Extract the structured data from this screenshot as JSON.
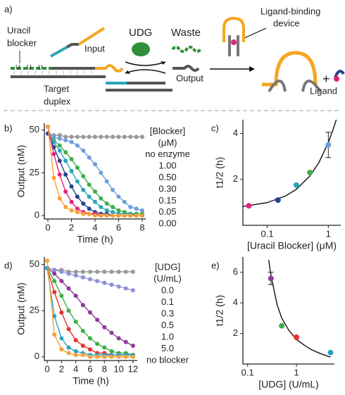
{
  "diagram": {
    "label": "a)",
    "uracil": "Uracil",
    "blocker": "blocker",
    "input": "Input",
    "udg": "UDG",
    "waste": "Waste",
    "output": "Output",
    "target": "Target",
    "duplex": "duplex",
    "device1": "Ligand-binding",
    "device2": "device",
    "plus": "+",
    "ligand": "Ligand",
    "u": "U"
  },
  "chart_data": [
    {
      "type": "line",
      "panel_label": "b)",
      "xlabel": "Time (h)",
      "ylabel": "Output (nM)",
      "xlim": [
        -0.3,
        8.3
      ],
      "ylim": [
        -2,
        54
      ],
      "xticks": [
        0,
        2,
        4,
        6,
        8
      ],
      "yticks": [
        0,
        25,
        50
      ],
      "legend": "right",
      "legend_title": [
        "[Blocker]",
        "(μM)"
      ],
      "x": [
        0,
        0.5,
        1,
        1.5,
        2,
        2.5,
        3,
        3.5,
        4,
        4.5,
        5,
        5.5,
        6,
        6.5,
        7,
        7.5,
        8
      ],
      "series": [
        {
          "name": "no enzyme",
          "color": "#999999",
          "values": [
            48,
            47,
            47,
            46,
            46,
            46,
            46,
            46,
            46,
            46,
            46,
            46,
            46,
            46,
            46,
            46,
            46
          ]
        },
        {
          "name": "1.00",
          "color": "#6e9fdc",
          "values": [
            48,
            46,
            45,
            44,
            43,
            41,
            38,
            34,
            30,
            25,
            20,
            15,
            11,
            8,
            5,
            4,
            3
          ]
        },
        {
          "name": "0.50",
          "color": "#3fae49",
          "values": [
            48,
            44,
            41,
            37,
            33,
            28,
            23,
            18,
            14,
            10,
            7,
            5,
            3,
            2,
            1,
            1,
            1
          ]
        },
        {
          "name": "0.30",
          "color": "#2aa6b8",
          "values": [
            48,
            43,
            38,
            32,
            26,
            20,
            15,
            11,
            8,
            5,
            3,
            2,
            1,
            1,
            1,
            0,
            0
          ]
        },
        {
          "name": "0.15",
          "color": "#27408b",
          "values": [
            48,
            40,
            32,
            24,
            17,
            11,
            7,
            4,
            2,
            1,
            1,
            0,
            0,
            0,
            0,
            0,
            0
          ]
        },
        {
          "name": "0.05",
          "color": "#e0247a",
          "values": [
            52,
            36,
            24,
            14,
            8,
            4,
            2,
            1,
            1,
            0,
            0,
            0,
            0,
            0,
            0,
            0,
            0
          ]
        },
        {
          "name": "0.00",
          "color": "#f7a134",
          "values": [
            52,
            22,
            10,
            5,
            3,
            2,
            1,
            1,
            0,
            0,
            0,
            0,
            0,
            0,
            0,
            0,
            0
          ]
        }
      ]
    },
    {
      "type": "scatter",
      "panel_label": "c)",
      "xlabel": "[Uracil Blocker] (μM)",
      "ylabel": "t1/2 (h)",
      "xscale": "log",
      "xlim": [
        0.04,
        1.6
      ],
      "ylim": [
        0,
        4.6
      ],
      "xticks": [
        0.1,
        1
      ],
      "yticks": [
        2,
        4
      ],
      "x": [
        0.05,
        0.15,
        0.3,
        0.5,
        1.0
      ],
      "values": [
        0.85,
        1.1,
        1.75,
        2.3,
        3.5
      ],
      "errors": [
        null,
        null,
        null,
        null,
        0.55
      ],
      "colors": [
        "#e0247a",
        "#27408b",
        "#2aa6b8",
        "#3fae49",
        "#6e9fdc"
      ],
      "fit": {
        "color": "#111111",
        "x": [
          0.04,
          0.1,
          0.2,
          0.3,
          0.5,
          0.7,
          1.0,
          1.2,
          1.35
        ],
        "values": [
          0.82,
          0.99,
          1.28,
          1.57,
          2.15,
          2.73,
          3.6,
          4.18,
          4.6
        ]
      }
    },
    {
      "type": "line",
      "panel_label": "d)",
      "xlabel": "Time (h)",
      "ylabel": "Output (nM)",
      "xlim": [
        -0.4,
        12.6
      ],
      "ylim": [
        -2,
        54
      ],
      "xticks": [
        0,
        2,
        4,
        6,
        8,
        10,
        12
      ],
      "yticks": [
        0,
        25,
        50
      ],
      "legend": "right",
      "legend_title": [
        "[UDG]",
        "(U/mL)"
      ],
      "x": [
        0,
        1,
        2,
        3,
        4,
        5,
        6,
        7,
        8,
        9,
        10,
        11,
        12
      ],
      "series": [
        {
          "name": "0.0",
          "color": "#999999",
          "values": [
            48,
            47,
            47,
            46,
            46,
            46,
            46,
            46,
            46,
            46,
            46,
            46,
            46
          ]
        },
        {
          "name": "0.1",
          "color": "#8f8fd6",
          "values": [
            48,
            47,
            46,
            45,
            44,
            43,
            42,
            41,
            40,
            39,
            38,
            37,
            36
          ]
        },
        {
          "name": "0.3",
          "color": "#8e3a9a",
          "values": [
            48,
            45,
            41,
            37,
            33,
            28,
            24,
            20,
            16,
            13,
            10,
            8,
            6
          ]
        },
        {
          "name": "0.5",
          "color": "#3fae49",
          "values": [
            48,
            41,
            33,
            25,
            19,
            14,
            10,
            7,
            5,
            3,
            2,
            2,
            1
          ]
        },
        {
          "name": "1.0",
          "color": "#e8322b",
          "values": [
            48,
            35,
            24,
            15,
            9,
            6,
            4,
            2,
            2,
            1,
            1,
            1,
            1
          ]
        },
        {
          "name": "5.0",
          "color": "#2aa0c4",
          "values": [
            48,
            22,
            10,
            5,
            3,
            2,
            1,
            1,
            1,
            1,
            1,
            1,
            1
          ]
        },
        {
          "name": "no blocker",
          "color": "#f7a134",
          "values": [
            52,
            12,
            4,
            2,
            1,
            1,
            0,
            0,
            0,
            0,
            0,
            0,
            0
          ]
        }
      ]
    },
    {
      "type": "scatter",
      "panel_label": "e)",
      "xlabel": "[UDG] (U/mL)",
      "ylabel": "t1/2 (h)",
      "xscale": "log",
      "xlim": [
        0.08,
        6
      ],
      "ylim": [
        0,
        7
      ],
      "xticks": [
        0.1,
        1
      ],
      "yticks": [
        2,
        4,
        6
      ],
      "x": [
        0.3,
        0.5,
        1.0,
        5.0
      ],
      "values": [
        5.6,
        2.5,
        1.75,
        0.75
      ],
      "errors": [
        0.4,
        null,
        null,
        null
      ],
      "colors": [
        "#8e3a9a",
        "#3fae49",
        "#e8322b",
        "#2aa0c4"
      ],
      "fit": {
        "color": "#111111",
        "x": [
          0.27,
          0.3,
          0.4,
          0.5,
          0.7,
          1,
          1.5,
          2,
          3,
          5
        ],
        "values": [
          6.8,
          5.8,
          3.9,
          3.0,
          2.2,
          1.6,
          1.2,
          0.95,
          0.7,
          0.45
        ]
      }
    }
  ]
}
